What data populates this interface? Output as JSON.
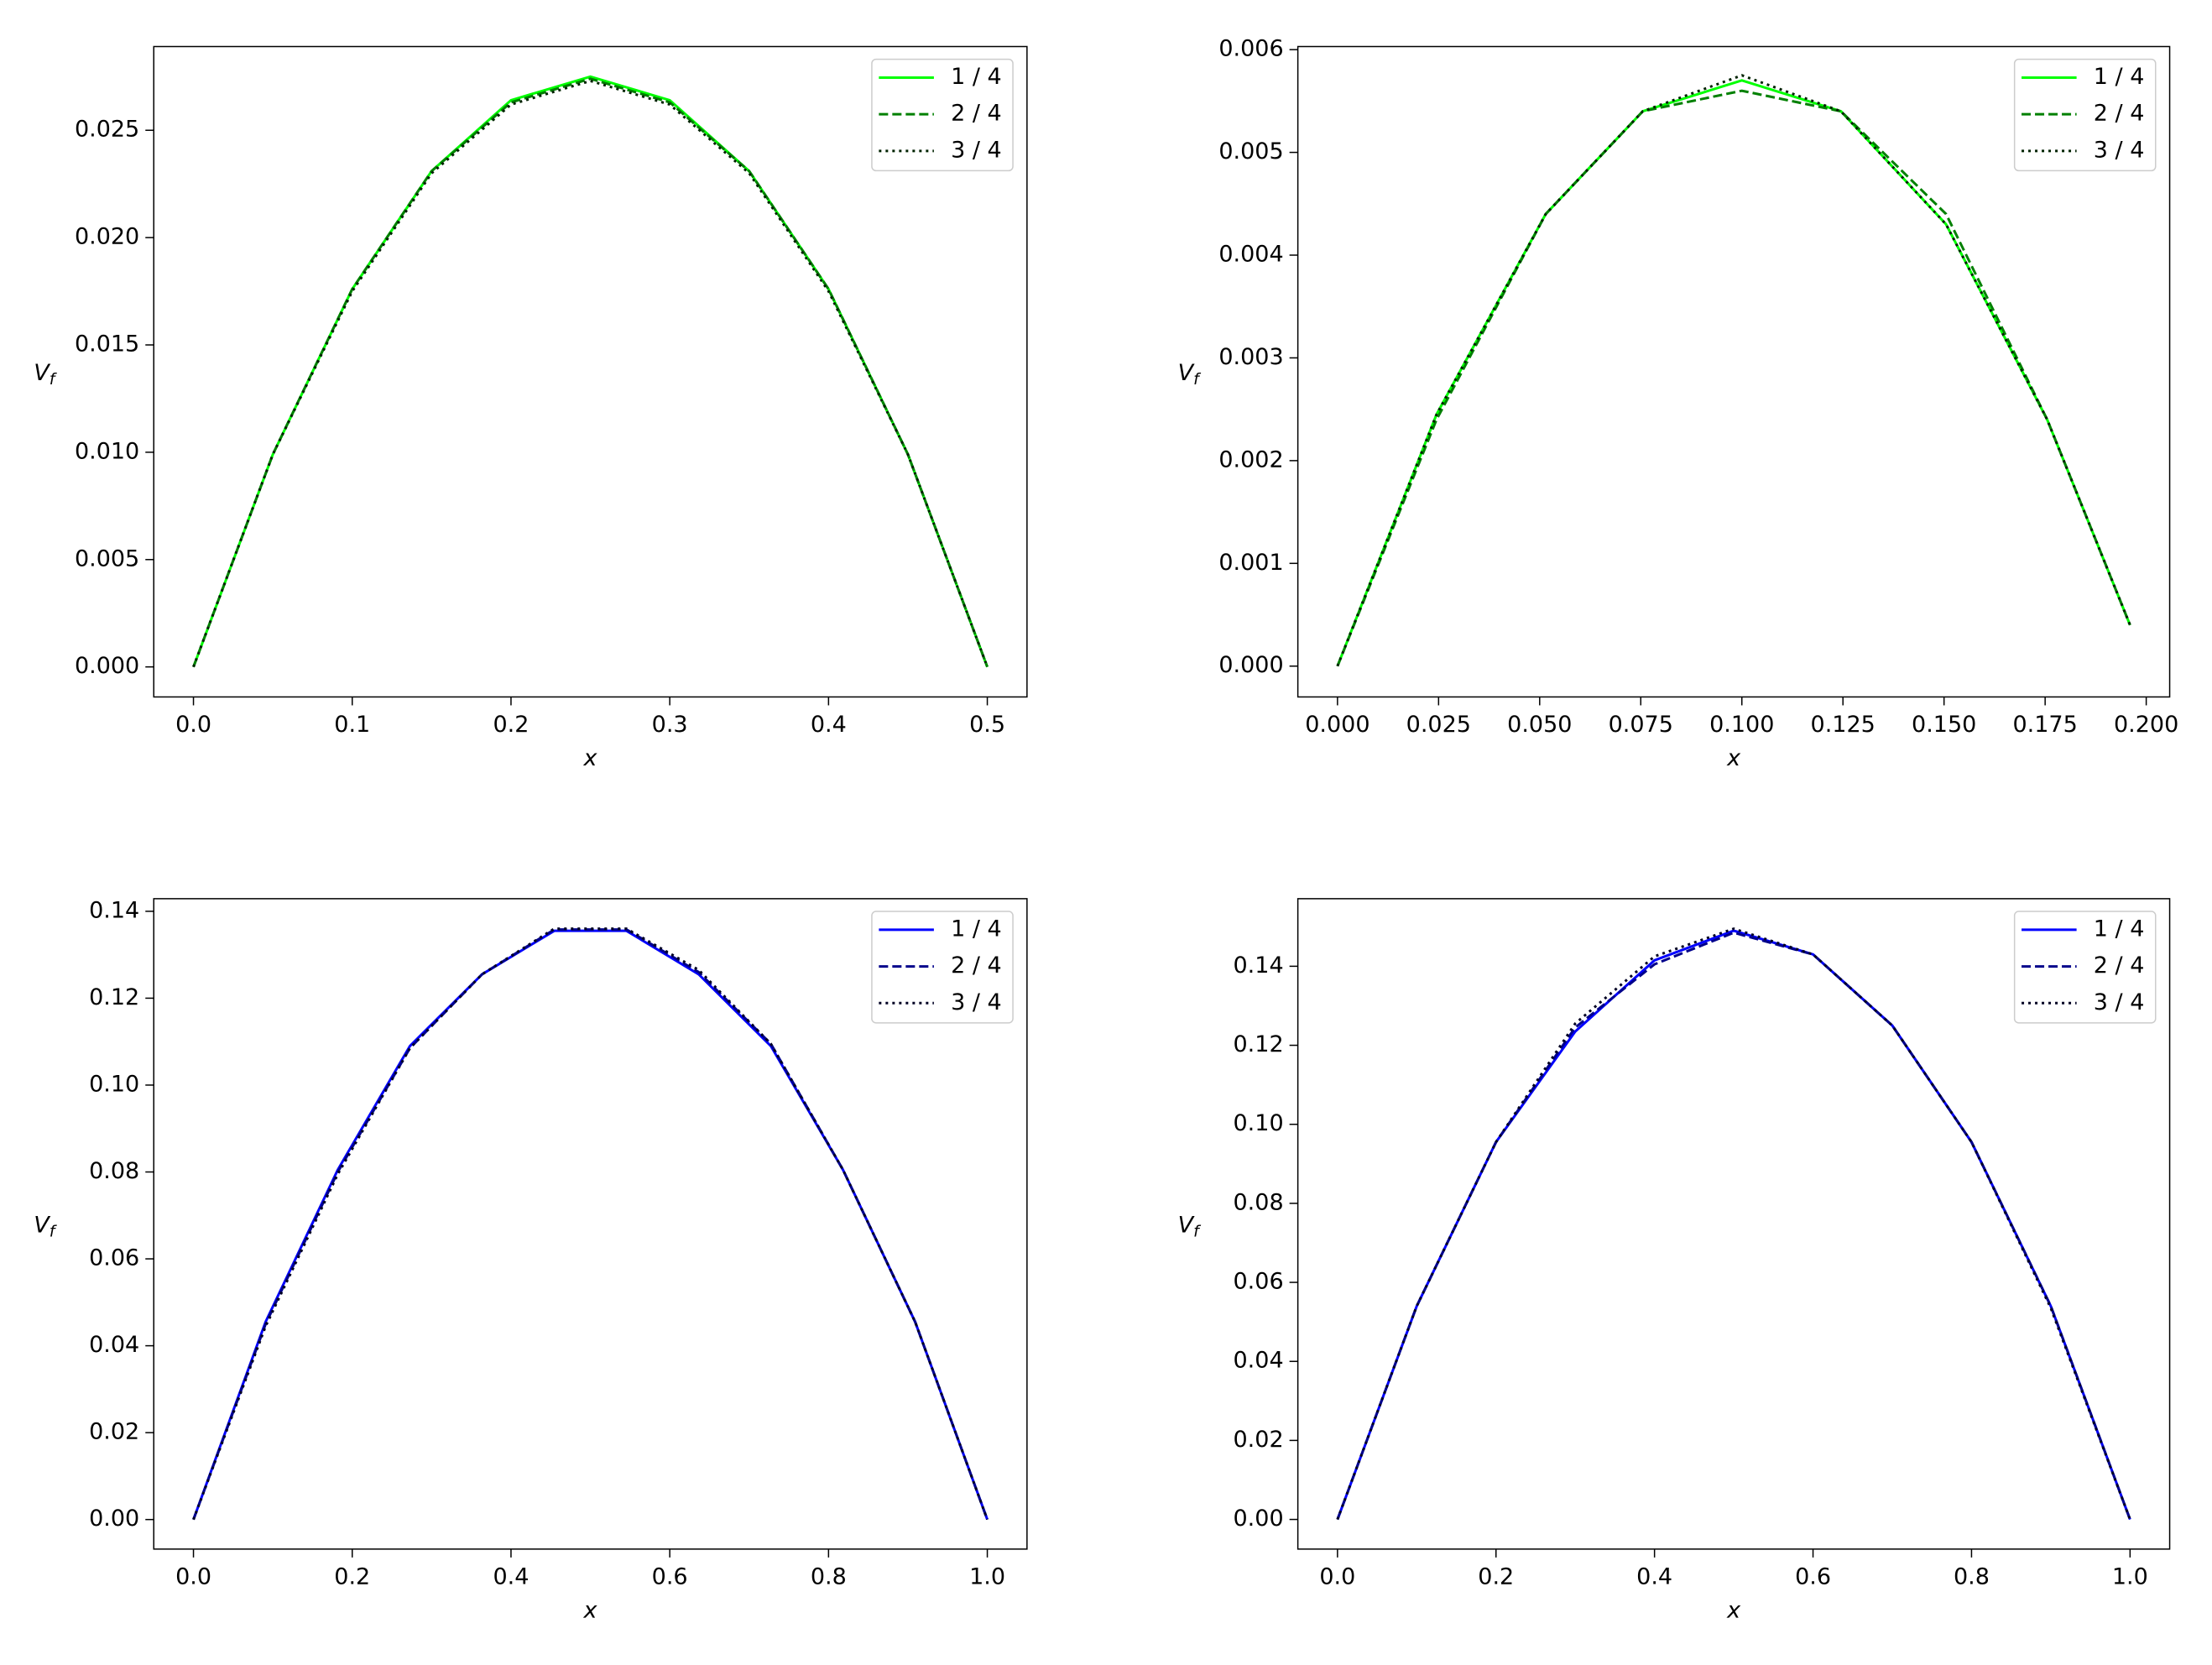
{
  "chart_data": [
    {
      "type": "line",
      "xlabel": "x",
      "ylabel": "V",
      "ylabel_sub": "f",
      "legend": "upper right",
      "x": [
        0,
        0.05,
        0.1,
        0.15,
        0.2,
        0.25,
        0.3,
        0.35,
        0.4,
        0.45,
        0.5
      ],
      "series": [
        {
          "name": "1 / 4",
          "color": "#00ff00",
          "style": "solid",
          "values": [
            0,
            0.0099,
            0.0176,
            0.0231,
            0.0264,
            0.0275,
            0.0264,
            0.0231,
            0.0176,
            0.0099,
            0
          ]
        },
        {
          "name": "2 / 4",
          "color": "#008000",
          "style": "dashed",
          "values": [
            0,
            0.0099,
            0.0176,
            0.0231,
            0.0263,
            0.0274,
            0.0263,
            0.0231,
            0.0176,
            0.0099,
            0
          ]
        },
        {
          "name": "3 / 4",
          "color": "#002200",
          "style": "dotted",
          "values": [
            0,
            0.0099,
            0.0175,
            0.023,
            0.0262,
            0.0273,
            0.0262,
            0.023,
            0.0175,
            0.0099,
            0
          ]
        }
      ],
      "xlim": [
        -0.025,
        0.525
      ],
      "ylim": [
        -0.0014,
        0.0289
      ],
      "xticks": [
        {
          "value": 0,
          "label": "0.0"
        },
        {
          "value": 0.1,
          "label": "0.1"
        },
        {
          "value": 0.2,
          "label": "0.2"
        },
        {
          "value": 0.3,
          "label": "0.3"
        },
        {
          "value": 0.4,
          "label": "0.4"
        },
        {
          "value": 0.5,
          "label": "0.5"
        }
      ],
      "yticks": [
        {
          "value": 0,
          "label": "0.000"
        },
        {
          "value": 0.005,
          "label": "0.005"
        },
        {
          "value": 0.01,
          "label": "0.010"
        },
        {
          "value": 0.015,
          "label": "0.015"
        },
        {
          "value": 0.02,
          "label": "0.020"
        },
        {
          "value": 0.025,
          "label": "0.025"
        }
      ]
    },
    {
      "type": "line",
      "xlabel": "x",
      "ylabel": "V",
      "ylabel_sub": "f",
      "legend": "upper right",
      "x": [
        0,
        0.0245,
        0.0515,
        0.0755,
        0.1,
        0.1245,
        0.1505,
        0.1755,
        0.196
      ],
      "series": [
        {
          "name": "1 / 4",
          "color": "#00ff00",
          "style": "solid",
          "values": [
            0,
            0.00245,
            0.0044,
            0.0054,
            0.0057,
            0.0054,
            0.0043,
            0.0024,
            0.0004
          ]
        },
        {
          "name": "2 / 4",
          "color": "#008000",
          "style": "dashed",
          "values": [
            0,
            0.0024,
            0.0044,
            0.0054,
            0.0056,
            0.0054,
            0.0044,
            0.0024,
            0.0004
          ]
        },
        {
          "name": "3 / 4",
          "color": "#002200",
          "style": "dotted",
          "values": [
            0,
            0.00245,
            0.0044,
            0.0054,
            0.00575,
            0.0054,
            0.0043,
            0.0024,
            0.0004
          ]
        }
      ],
      "xlim": [
        -0.0098,
        0.2058
      ],
      "ylim": [
        -0.0003,
        0.00603
      ],
      "xticks": [
        {
          "value": 0,
          "label": "0.000"
        },
        {
          "value": 0.025,
          "label": "0.025"
        },
        {
          "value": 0.05,
          "label": "0.050"
        },
        {
          "value": 0.075,
          "label": "0.075"
        },
        {
          "value": 0.1,
          "label": "0.100"
        },
        {
          "value": 0.125,
          "label": "0.125"
        },
        {
          "value": 0.15,
          "label": "0.150"
        },
        {
          "value": 0.175,
          "label": "0.175"
        },
        {
          "value": 0.2,
          "label": "0.200"
        }
      ],
      "yticks": [
        {
          "value": 0,
          "label": "0.000"
        },
        {
          "value": 0.001,
          "label": "0.001"
        },
        {
          "value": 0.002,
          "label": "0.002"
        },
        {
          "value": 0.003,
          "label": "0.003"
        },
        {
          "value": 0.004,
          "label": "0.004"
        },
        {
          "value": 0.005,
          "label": "0.005"
        },
        {
          "value": 0.006,
          "label": "0.006"
        }
      ]
    },
    {
      "type": "line",
      "xlabel": "x",
      "ylabel": "V",
      "ylabel_sub": "f",
      "legend": "upper right",
      "x": [
        0,
        0.0909,
        0.1818,
        0.2727,
        0.3636,
        0.4545,
        0.5455,
        0.6364,
        0.7273,
        0.8182,
        0.9091,
        1.0
      ],
      "series": [
        {
          "name": "1 / 4",
          "color": "#0000ff",
          "style": "solid",
          "values": [
            0,
            0.0455,
            0.0805,
            0.109,
            0.1255,
            0.1355,
            0.1355,
            0.1255,
            0.109,
            0.0805,
            0.0455,
            0
          ]
        },
        {
          "name": "2 / 4",
          "color": "#00008b",
          "style": "dashed",
          "values": [
            0,
            0.045,
            0.08,
            0.1085,
            0.1255,
            0.1358,
            0.1358,
            0.126,
            0.1095,
            0.0805,
            0.0455,
            0
          ]
        },
        {
          "name": "3 / 4",
          "color": "#000022",
          "style": "dotted",
          "values": [
            0,
            0.0445,
            0.0795,
            0.1085,
            0.1255,
            0.136,
            0.136,
            0.1265,
            0.1095,
            0.0805,
            0.0455,
            0
          ]
        }
      ],
      "xlim": [
        -0.05,
        1.05
      ],
      "ylim": [
        -0.0068,
        0.1429
      ],
      "xticks": [
        {
          "value": 0,
          "label": "0.0"
        },
        {
          "value": 0.2,
          "label": "0.2"
        },
        {
          "value": 0.4,
          "label": "0.4"
        },
        {
          "value": 0.6,
          "label": "0.6"
        },
        {
          "value": 0.8,
          "label": "0.8"
        },
        {
          "value": 1,
          "label": "1.0"
        }
      ],
      "yticks": [
        {
          "value": 0,
          "label": "0.00"
        },
        {
          "value": 0.02,
          "label": "0.02"
        },
        {
          "value": 0.04,
          "label": "0.04"
        },
        {
          "value": 0.06,
          "label": "0.06"
        },
        {
          "value": 0.08,
          "label": "0.08"
        },
        {
          "value": 0.1,
          "label": "0.10"
        },
        {
          "value": 0.12,
          "label": "0.12"
        },
        {
          "value": 0.14,
          "label": "0.14"
        }
      ]
    },
    {
      "type": "line",
      "xlabel": "x",
      "ylabel": "V",
      "ylabel_sub": "f",
      "legend": "upper right",
      "x": [
        0,
        0.1,
        0.2,
        0.3,
        0.4,
        0.5,
        0.6,
        0.7,
        0.8,
        0.9,
        1.0
      ],
      "series": [
        {
          "name": "1 / 4",
          "color": "#0000ff",
          "style": "solid",
          "values": [
            0,
            0.054,
            0.0955,
            0.1235,
            0.1415,
            0.149,
            0.143,
            0.125,
            0.0955,
            0.054,
            0
          ]
        },
        {
          "name": "2 / 4",
          "color": "#00008b",
          "style": "dashed",
          "values": [
            0,
            0.054,
            0.0955,
            0.1245,
            0.1405,
            0.1485,
            0.143,
            0.125,
            0.0955,
            0.054,
            0
          ]
        },
        {
          "name": "3 / 4",
          "color": "#000022",
          "style": "dotted",
          "values": [
            0,
            0.054,
            0.0955,
            0.1255,
            0.1425,
            0.1495,
            0.143,
            0.125,
            0.0955,
            0.0535,
            0
          ]
        }
      ],
      "xlim": [
        -0.05,
        1.05
      ],
      "ylim": [
        -0.0075,
        0.1571
      ],
      "xticks": [
        {
          "value": 0,
          "label": "0.0"
        },
        {
          "value": 0.2,
          "label": "0.2"
        },
        {
          "value": 0.4,
          "label": "0.4"
        },
        {
          "value": 0.6,
          "label": "0.6"
        },
        {
          "value": 0.8,
          "label": "0.8"
        },
        {
          "value": 1,
          "label": "1.0"
        }
      ],
      "yticks": [
        {
          "value": 0,
          "label": "0.00"
        },
        {
          "value": 0.02,
          "label": "0.02"
        },
        {
          "value": 0.04,
          "label": "0.04"
        },
        {
          "value": 0.06,
          "label": "0.06"
        },
        {
          "value": 0.08,
          "label": "0.08"
        },
        {
          "value": 0.1,
          "label": "0.10"
        },
        {
          "value": 0.12,
          "label": "0.12"
        },
        {
          "value": 0.14,
          "label": "0.14"
        }
      ]
    }
  ]
}
